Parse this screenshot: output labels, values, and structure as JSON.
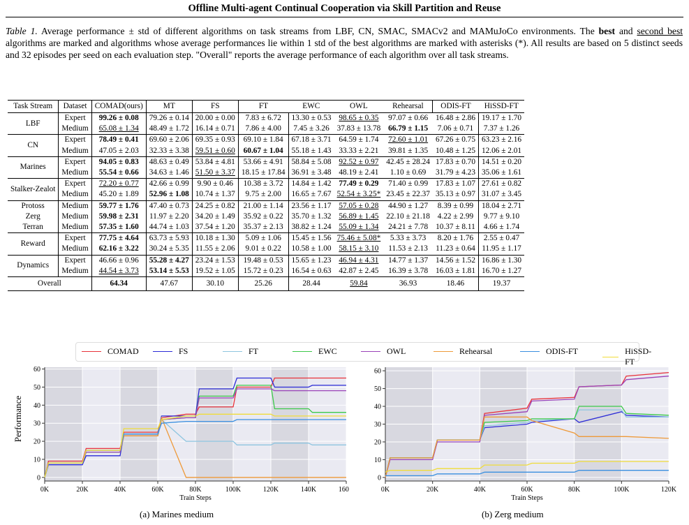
{
  "header": "Offline Multi-agent Continual Cooperation via Skill Partition and Reuse",
  "caption": {
    "lead": "Table 1.",
    "t1": " Average performance ± std of different algorithms on task streams from LBF, CN, SMAC, SMACv2 and MAMuJoCo environments. The ",
    "best": "best",
    "t2": " and ",
    "second": "second best",
    "t3": " algorithms are marked and algorithms whose average performances lie within 1 std of the best algorithms are marked with asterisks (*). All results are based on 5 distinct seeds and 32 episodes per seed on each evaluation step. \"Overall\" reports the average performance of each algorithm over all task streams."
  },
  "table": {
    "headers": [
      "Task Stream",
      "Dataset",
      "COMAD(ours)",
      "MT",
      "FS",
      "FT",
      "EWC",
      "OWL",
      "Rehearsal",
      "ODIS-FT",
      "HiSSD-FT"
    ],
    "groups": [
      {
        "name": [
          "LBF"
        ],
        "rows": [
          {
            "ds": "Expert",
            "v": [
              "99.26 ± 0.08",
              "79.26 ± 0.14",
              "20.00 ± 0.00",
              "7.83 ± 6.72",
              "13.30 ± 0.53",
              "98.65 ± 0.35",
              "97.07 ± 0.66",
              "16.48 ± 2.86",
              "19.17 ± 1.70"
            ],
            "f": [
              "b",
              "",
              "",
              "",
              "",
              "u",
              "",
              "",
              ""
            ]
          },
          {
            "ds": "Medium",
            "v": [
              "65.08 ± 1.34",
              "48.49 ± 1.72",
              "16.14 ± 0.71",
              "7.86 ± 4.00",
              "7.45 ± 3.26",
              "37.83 ± 13.78",
              "66.79 ± 1.15",
              "7.06 ± 0.71",
              "7.37 ± 1.26"
            ],
            "f": [
              "u",
              "",
              "",
              "",
              "",
              "",
              "b",
              "",
              ""
            ]
          }
        ]
      },
      {
        "name": [
          "CN"
        ],
        "rows": [
          {
            "ds": "Expert",
            "v": [
              "78.49 ± 0.41",
              "69.60 ± 2.06",
              "69.35 ± 0.93",
              "69.10 ± 1.84",
              "67.18 ± 3.71",
              "64.59 ± 1.74",
              "72.60 ± 1.01",
              "67.26 ± 0.75",
              "63.23 ± 2.16"
            ],
            "f": [
              "b",
              "",
              "",
              "",
              "",
              "",
              "u",
              "",
              ""
            ]
          },
          {
            "ds": "Medium",
            "v": [
              "47.05 ± 2.03",
              "32.33 ± 3.38",
              "59.51 ± 0.60",
              "60.67 ± 1.04",
              "55.18 ± 1.43",
              "33.33 ± 2.21",
              "39.81 ± 1.35",
              "10.48 ± 1.25",
              "12.06 ± 2.01"
            ],
            "f": [
              "",
              "",
              "u",
              "b",
              "",
              "",
              "",
              "",
              ""
            ]
          }
        ]
      },
      {
        "name": [
          "Marines"
        ],
        "rows": [
          {
            "ds": "Expert",
            "v": [
              "94.05 ± 0.83",
              "48.63 ± 0.49",
              "53.84 ± 4.81",
              "53.66 ± 4.91",
              "58.84 ± 5.08",
              "92.52 ± 0.97",
              "42.45 ± 28.24",
              "17.83 ± 0.70",
              "14.51 ± 0.20"
            ],
            "f": [
              "b",
              "",
              "",
              "",
              "",
              "u",
              "",
              "",
              ""
            ]
          },
          {
            "ds": "Medium",
            "v": [
              "55.54 ± 0.66",
              "34.63 ± 1.46",
              "51.50 ± 3.37",
              "18.15 ± 17.84",
              "36.91 ± 3.48",
              "48.19 ± 2.41",
              "1.10 ± 0.69",
              "31.79 ± 4.23",
              "35.06 ± 1.61"
            ],
            "f": [
              "b",
              "",
              "u",
              "",
              "",
              "",
              "",
              "",
              ""
            ]
          }
        ]
      },
      {
        "name": [
          "Stalker-Zealot"
        ],
        "rows": [
          {
            "ds": "Expert",
            "v": [
              "72.20 ± 0.77",
              "42.66 ± 0.99",
              "9.90 ± 0.46",
              "10.38 ± 3.72",
              "14.84 ± 1.42",
              "77.49 ± 0.29",
              "71.40 ± 0.99",
              "17.83 ± 1.07",
              "27.61 ± 0.82"
            ],
            "f": [
              "u",
              "",
              "",
              "",
              "",
              "b",
              "",
              "",
              ""
            ]
          },
          {
            "ds": "Medium",
            "v": [
              "45.20 ± 1.89",
              "52.96 ± 1.08",
              "10.74 ± 1.37",
              "9.75 ± 2.00",
              "16.65 ± 7.67",
              "52.54 ± 3.25*",
              "23.45 ± 22.37",
              "35.13 ± 0.97",
              "31.07 ± 3.45"
            ],
            "f": [
              "",
              "b",
              "",
              "",
              "",
              "u",
              "",
              "",
              ""
            ]
          }
        ]
      },
      {
        "name": [
          "Protoss",
          "Zerg",
          "Terran"
        ],
        "rows": [
          {
            "ds": "Medium",
            "v": [
              "59.77 ± 1.76",
              "47.40 ± 0.73",
              "24.25 ± 0.82",
              "21.00 ± 1.14",
              "23.56 ± 1.17",
              "57.05 ± 0.28",
              "44.90 ± 1.27",
              "8.39 ± 0.99",
              "18.04 ± 2.71"
            ],
            "f": [
              "b",
              "",
              "",
              "",
              "",
              "u",
              "",
              "",
              ""
            ]
          },
          {
            "ds": "Medium",
            "v": [
              "59.98 ± 2.31",
              "11.97 ± 2.20",
              "34.20 ± 1.49",
              "35.92 ± 0.22",
              "35.70 ± 1.32",
              "56.89 ± 1.45",
              "22.10 ± 21.18",
              "4.22 ± 2.99",
              "9.77 ± 9.10"
            ],
            "f": [
              "b",
              "",
              "",
              "",
              "",
              "u",
              "",
              "",
              ""
            ]
          },
          {
            "ds": "Medium",
            "v": [
              "57.35 ± 1.60",
              "44.74 ± 1.03",
              "37.54 ± 1.20",
              "35.37 ± 2.13",
              "38.82 ± 1.24",
              "55.09 ± 1.34",
              "24.21 ± 7.78",
              "10.37 ± 8.11",
              "4.66 ± 1.74"
            ],
            "f": [
              "b",
              "",
              "",
              "",
              "",
              "u",
              "",
              "",
              ""
            ]
          }
        ]
      },
      {
        "name": [
          "Reward"
        ],
        "rows": [
          {
            "ds": "Expert",
            "v": [
              "77.75 ± 4.64",
              "63.73 ± 5.93",
              "10.18 ± 1.30",
              "5.09 ± 1.06",
              "15.45 ± 1.56",
              "75.46 ± 5.08*",
              "5.33 ± 3.73",
              "8.20 ± 1.76",
              "2.55 ± 0.47"
            ],
            "f": [
              "b",
              "",
              "",
              "",
              "",
              "u",
              "",
              "",
              ""
            ]
          },
          {
            "ds": "Medium",
            "v": [
              "62.16 ± 3.22",
              "30.24 ± 5.35",
              "11.55 ± 2.06",
              "9.01 ± 0.22",
              "10.58 ± 1.00",
              "58.15 ± 3.10",
              "11.53 ± 2.13",
              "11.23 ± 0.64",
              "11.95 ± 1.17"
            ],
            "f": [
              "b",
              "",
              "",
              "",
              "",
              "u",
              "",
              "",
              ""
            ]
          }
        ]
      },
      {
        "name": [
          "Dynamics"
        ],
        "rows": [
          {
            "ds": "Expert",
            "v": [
              "46.66 ± 0.96",
              "55.28 ± 4.27",
              "23.24 ± 1.53",
              "19.48 ± 0.53",
              "15.65 ± 1.23",
              "46.94 ± 4.31",
              "14.77 ± 1.37",
              "14.56 ± 1.52",
              "16.86 ± 1.30"
            ],
            "f": [
              "",
              "b",
              "",
              "",
              "",
              "u",
              "",
              "",
              ""
            ]
          },
          {
            "ds": "Medium",
            "v": [
              "44.54 ± 3.73",
              "53.14 ± 5.53",
              "19.52 ± 1.05",
              "15.72 ± 0.23",
              "16.54 ± 0.63",
              "42.87 ± 2.45",
              "16.39 ± 3.78",
              "16.03 ± 1.81",
              "16.70 ± 1.27"
            ],
            "f": [
              "u",
              "b",
              "",
              "",
              "",
              "",
              "",
              "",
              ""
            ]
          }
        ]
      }
    ],
    "overall": {
      "label": "Overall",
      "v": [
        "64.34",
        "47.67",
        "30.10",
        "25.26",
        "28.44",
        "59.84",
        "36.93",
        "18.46",
        "19.37"
      ],
      "f": [
        "b",
        "",
        "",
        "",
        "",
        "u",
        "",
        "",
        ""
      ]
    }
  },
  "legend": [
    {
      "name": "COMAD",
      "color": "#e8323a"
    },
    {
      "name": "FS",
      "color": "#2b2bd6"
    },
    {
      "name": "FT",
      "color": "#8ec5e0"
    },
    {
      "name": "EWC",
      "color": "#3cc94a"
    },
    {
      "name": "OWL",
      "color": "#9a43b8"
    },
    {
      "name": "Rehearsal",
      "color": "#ee9a3a"
    },
    {
      "name": "ODIS-FT",
      "color": "#3a8fe0"
    },
    {
      "name": "HiSSD-FT",
      "color": "#f0dc3a"
    }
  ],
  "chart_data": [
    {
      "type": "line",
      "title": "(a) Marines medium",
      "xlabel": "Train Steps",
      "ylabel": "Performance",
      "xticks": [
        "0K",
        "20K",
        "40K",
        "60K",
        "80K",
        "100K",
        "120K",
        "140K",
        "160K"
      ],
      "yticks": [
        "0",
        "10",
        "20",
        "30",
        "40",
        "50",
        "60"
      ],
      "xlim": [
        0,
        160000
      ],
      "ylim": [
        -2,
        61
      ],
      "shaded_task_bands": [
        [
          0,
          20000
        ],
        [
          40000,
          60000
        ],
        [
          80000,
          100000
        ],
        [
          120000,
          140000
        ]
      ],
      "x": [
        0,
        2000,
        20000,
        22000,
        40000,
        42000,
        60000,
        62000,
        75000,
        80000,
        82000,
        100000,
        102000,
        120000,
        122000,
        140000,
        142000,
        160000
      ],
      "series": [
        {
          "name": "COMAD",
          "values": [
            0,
            9,
            9,
            16,
            16,
            25,
            25,
            33,
            35,
            35,
            39,
            39,
            50,
            50,
            55,
            55,
            55,
            55
          ]
        },
        {
          "name": "FS",
          "values": [
            0,
            7,
            7,
            12,
            12,
            24,
            24,
            34,
            34,
            34,
            49,
            49,
            55,
            55,
            50,
            50,
            51,
            51
          ]
        },
        {
          "name": "FT",
          "values": [
            0,
            8,
            8,
            15,
            15,
            24,
            24,
            32,
            20,
            20,
            20,
            20,
            18,
            18,
            19,
            19,
            18,
            18
          ]
        },
        {
          "name": "EWC",
          "values": [
            0,
            8,
            8,
            14,
            14,
            23,
            23,
            32,
            33,
            33,
            45,
            45,
            51,
            51,
            38,
            38,
            36,
            36
          ]
        },
        {
          "name": "OWL",
          "values": [
            0,
            8,
            8,
            14,
            14,
            23,
            23,
            32,
            33,
            33,
            44,
            44,
            49,
            49,
            48,
            48,
            48,
            48
          ]
        },
        {
          "name": "Rehearsal",
          "values": [
            0,
            8,
            8,
            15,
            15,
            23,
            23,
            33,
            0,
            0,
            0,
            0,
            0,
            0,
            0,
            0,
            0,
            0
          ]
        },
        {
          "name": "ODIS-FT",
          "values": [
            0,
            8,
            8,
            15,
            15,
            24,
            24,
            30,
            31,
            31,
            31,
            31,
            32,
            32,
            32,
            32,
            32,
            32
          ]
        },
        {
          "name": "HiSSD-FT",
          "values": [
            0,
            8,
            8,
            15,
            15,
            27,
            27,
            32,
            34,
            34,
            35,
            35,
            35,
            35,
            34,
            34,
            34,
            34
          ]
        }
      ]
    },
    {
      "type": "line",
      "title": "(b) Zerg medium",
      "xlabel": "Train Steps",
      "ylabel": "",
      "xticks": [
        "0K",
        "20K",
        "40K",
        "60K",
        "80K",
        "100K",
        "120K"
      ],
      "yticks": [
        "0",
        "10",
        "20",
        "30",
        "40",
        "50",
        "60"
      ],
      "xlim": [
        0,
        120000
      ],
      "ylim": [
        -2,
        62
      ],
      "shaded_task_bands": [
        [
          0,
          20000
        ],
        [
          40000,
          60000
        ],
        [
          80000,
          100000
        ]
      ],
      "x": [
        0,
        2000,
        20000,
        22000,
        40000,
        42000,
        60000,
        62000,
        80000,
        82000,
        100000,
        102000,
        120000
      ],
      "series": [
        {
          "name": "COMAD",
          "values": [
            0,
            11,
            11,
            21,
            21,
            36,
            39,
            44,
            45,
            51,
            52,
            57,
            59
          ]
        },
        {
          "name": "FS",
          "values": [
            0,
            11,
            11,
            21,
            21,
            28,
            30,
            31,
            33,
            31,
            37,
            35,
            34
          ]
        },
        {
          "name": "FT",
          "values": [
            0,
            11,
            11,
            21,
            21,
            29,
            31,
            32,
            33,
            38,
            38,
            34,
            34
          ]
        },
        {
          "name": "EWC",
          "values": [
            0,
            11,
            11,
            21,
            21,
            31,
            32,
            33,
            33,
            40,
            40,
            36,
            35
          ]
        },
        {
          "name": "OWL",
          "values": [
            0,
            10,
            10,
            20,
            20,
            35,
            37,
            43,
            44,
            51,
            52,
            55,
            57
          ]
        },
        {
          "name": "Rehearsal",
          "values": [
            0,
            11,
            11,
            21,
            21,
            34,
            34,
            32,
            25,
            23,
            23,
            23,
            22
          ]
        },
        {
          "name": "ODIS-FT",
          "values": [
            1,
            1,
            1,
            2,
            2,
            3,
            3,
            3,
            3,
            4,
            4,
            4,
            4
          ]
        },
        {
          "name": "HiSSD-FT",
          "values": [
            3,
            4,
            4,
            5,
            5,
            7,
            7,
            8,
            8,
            9,
            9,
            9,
            9
          ]
        }
      ]
    }
  ]
}
